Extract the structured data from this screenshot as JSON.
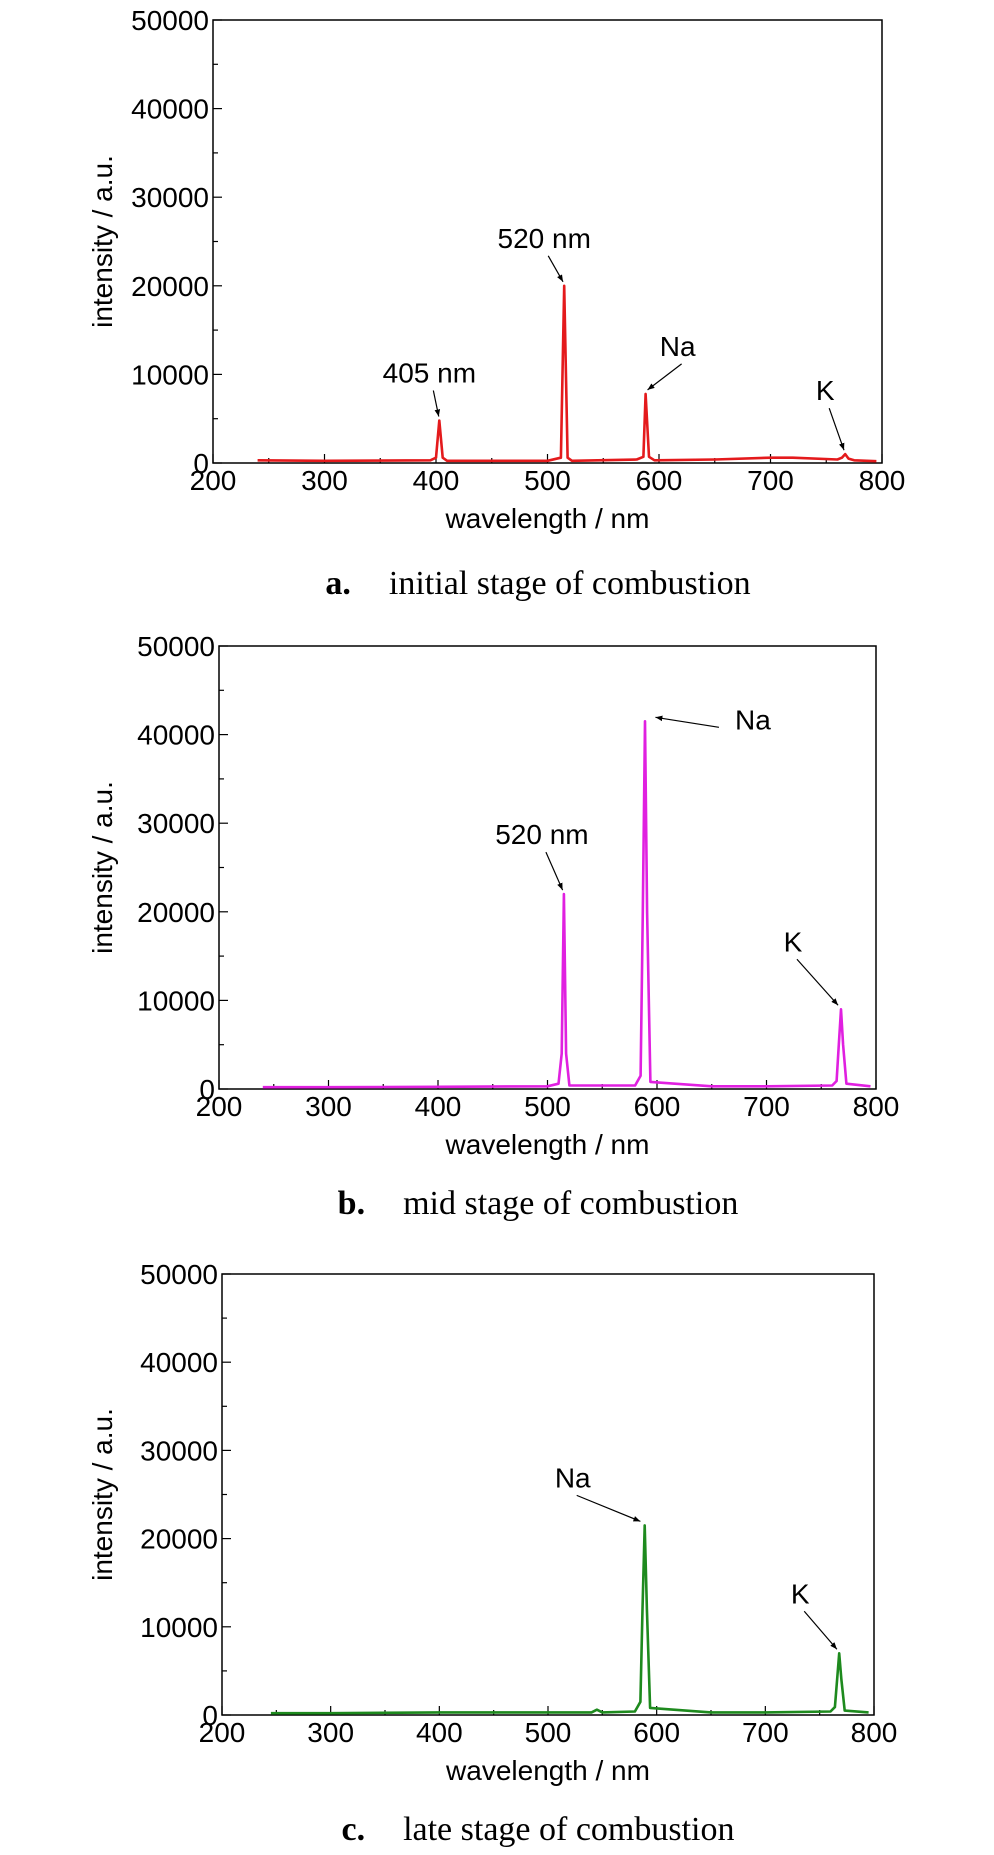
{
  "chart_data": [
    {
      "type": "line",
      "xlabel": "wavelength / nm",
      "ylabel": "intensity / a.u.",
      "xlim": [
        200,
        800
      ],
      "ylim": [
        0,
        50000
      ],
      "xticks": [
        "200",
        "300",
        "400",
        "500",
        "600",
        "700",
        "800"
      ],
      "yticks": [
        "0",
        "10000",
        "20000",
        "30000",
        "40000",
        "50000"
      ],
      "grid": false,
      "caption": {
        "letter": "a.",
        "text": "initial stage of combustion"
      },
      "series": [
        {
          "color": "#e41a1c",
          "x": [
            240,
            300,
            395,
            400,
            403,
            406,
            410,
            500,
            512,
            515,
            518,
            522,
            580,
            586,
            588,
            591,
            596,
            650,
            700,
            720,
            760,
            764,
            767,
            770,
            775,
            795
          ],
          "y": [
            300,
            250,
            300,
            600,
            4800,
            600,
            250,
            250,
            600,
            20000,
            600,
            250,
            400,
            700,
            7800,
            700,
            300,
            400,
            600,
            600,
            400,
            600,
            1000,
            500,
            300,
            200
          ]
        }
      ],
      "annotations": [
        {
          "text": "405 nm",
          "x": 403,
          "y": 4800
        },
        {
          "text": "520 nm",
          "x": 515,
          "y": 20000
        },
        {
          "text": "Na",
          "x": 588,
          "y": 7800
        },
        {
          "text": "K",
          "x": 767,
          "y": 1000
        }
      ]
    },
    {
      "type": "line",
      "xlabel": "wavelength / nm",
      "ylabel": "intensity / a.u.",
      "xlim": [
        200,
        800
      ],
      "ylim": [
        0,
        50000
      ],
      "xticks": [
        "200",
        "300",
        "400",
        "500",
        "600",
        "700",
        "800"
      ],
      "yticks": [
        "0",
        "10000",
        "20000",
        "30000",
        "40000",
        "50000"
      ],
      "grid": false,
      "caption": {
        "letter": "b.",
        "text": "mid stage of combustion"
      },
      "series": [
        {
          "color": "#e020e0",
          "x": [
            240,
            300,
            400,
            500,
            510,
            513,
            515,
            517,
            520,
            580,
            585,
            587,
            589,
            591,
            594,
            650,
            700,
            760,
            764,
            766,
            768,
            770,
            773,
            795
          ],
          "y": [
            200,
            200,
            250,
            300,
            600,
            4000,
            22000,
            4000,
            400,
            400,
            1500,
            20000,
            41500,
            20000,
            800,
            300,
            300,
            400,
            900,
            5000,
            9000,
            5000,
            600,
            300
          ]
        }
      ],
      "annotations": [
        {
          "text": "520 nm",
          "x": 515,
          "y": 22000
        },
        {
          "text": "Na",
          "x": 589,
          "y": 41500
        },
        {
          "text": "K",
          "x": 768,
          "y": 9000
        }
      ]
    },
    {
      "type": "line",
      "xlabel": "wavelength / nm",
      "ylabel": "intensity / a.u.",
      "xlim": [
        200,
        800
      ],
      "ylim": [
        0,
        50000
      ],
      "xticks": [
        "200",
        "300",
        "400",
        "500",
        "600",
        "700",
        "800"
      ],
      "yticks": [
        "0",
        "10000",
        "20000",
        "30000",
        "40000",
        "50000"
      ],
      "grid": false,
      "caption": {
        "letter": "c.",
        "text": "late stage of combustion"
      },
      "series": [
        {
          "color": "#1e8a1e",
          "x": [
            245,
            300,
            400,
            500,
            540,
            545,
            550,
            580,
            585,
            587,
            589,
            591,
            594,
            650,
            700,
            760,
            764,
            766,
            768,
            770,
            773,
            795
          ],
          "y": [
            200,
            200,
            300,
            300,
            300,
            600,
            300,
            400,
            1500,
            12000,
            21500,
            12000,
            800,
            300,
            300,
            400,
            900,
            4000,
            7000,
            4000,
            500,
            300
          ]
        }
      ],
      "annotations": [
        {
          "text": "Na",
          "x": 589,
          "y": 21500
        },
        {
          "text": "K",
          "x": 768,
          "y": 7000
        }
      ]
    }
  ]
}
